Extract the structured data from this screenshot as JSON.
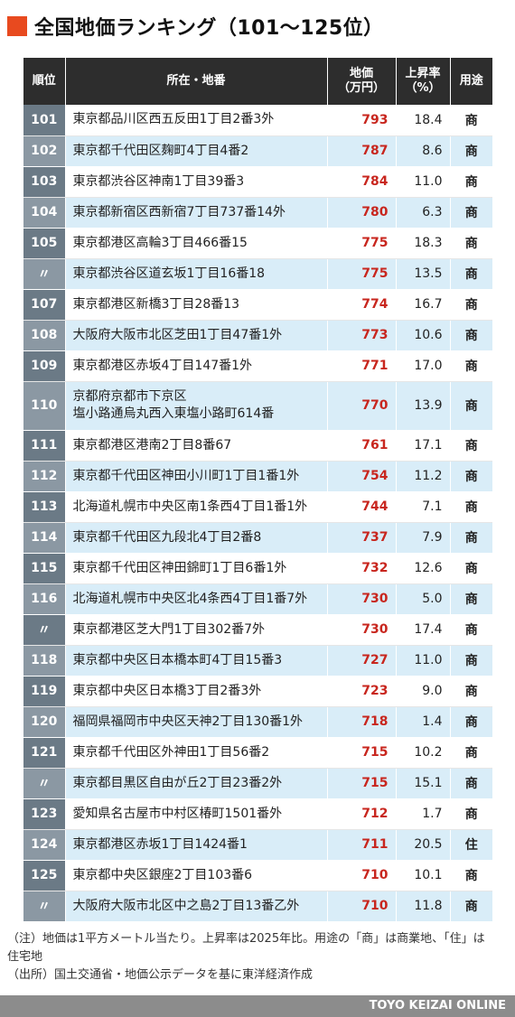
{
  "title": "全国地価ランキング（101〜125位）",
  "accent_color": "#e84a1f",
  "price_color": "#c8261e",
  "table": {
    "headers": {
      "rank": "順位",
      "address": "所在・地番",
      "price_line1": "地価",
      "price_line2": "（万円）",
      "rate_line1": "上昇率",
      "rate_line2": "（%）",
      "use": "用途"
    },
    "rows": [
      {
        "rank": "101",
        "address": "東京都品川区西五反田1丁目2番3外",
        "price": "793",
        "rate": "18.4",
        "use": "商"
      },
      {
        "rank": "102",
        "address": "東京都千代田区麹町4丁目4番2",
        "price": "787",
        "rate": "8.6",
        "use": "商"
      },
      {
        "rank": "103",
        "address": "東京都渋谷区神南1丁目39番3",
        "price": "784",
        "rate": "11.0",
        "use": "商"
      },
      {
        "rank": "104",
        "address": "東京都新宿区西新宿7丁目737番14外",
        "price": "780",
        "rate": "6.3",
        "use": "商"
      },
      {
        "rank": "105",
        "address": "東京都港区高輪3丁目466番15",
        "price": "775",
        "rate": "18.3",
        "use": "商"
      },
      {
        "rank": "〃",
        "address": "東京都渋谷区道玄坂1丁目16番18",
        "price": "775",
        "rate": "13.5",
        "use": "商"
      },
      {
        "rank": "107",
        "address": "東京都港区新橋3丁目28番13",
        "price": "774",
        "rate": "16.7",
        "use": "商"
      },
      {
        "rank": "108",
        "address": "大阪府大阪市北区芝田1丁目47番1外",
        "price": "773",
        "rate": "10.6",
        "use": "商"
      },
      {
        "rank": "109",
        "address": "東京都港区赤坂4丁目147番1外",
        "price": "771",
        "rate": "17.0",
        "use": "商"
      },
      {
        "rank": "110",
        "address": "京都府京都市下京区",
        "address2": "塩小路通烏丸西入東塩小路町614番",
        "price": "770",
        "rate": "13.9",
        "use": "商"
      },
      {
        "rank": "111",
        "address": "東京都港区港南2丁目8番67",
        "price": "761",
        "rate": "17.1",
        "use": "商"
      },
      {
        "rank": "112",
        "address": "東京都千代田区神田小川町1丁目1番1外",
        "price": "754",
        "rate": "11.2",
        "use": "商"
      },
      {
        "rank": "113",
        "address": "北海道札幌市中央区南1条西4丁目1番1外",
        "price": "744",
        "rate": "7.1",
        "use": "商"
      },
      {
        "rank": "114",
        "address": "東京都千代田区九段北4丁目2番8",
        "price": "737",
        "rate": "7.9",
        "use": "商"
      },
      {
        "rank": "115",
        "address": "東京都千代田区神田錦町1丁目6番1外",
        "price": "732",
        "rate": "12.6",
        "use": "商"
      },
      {
        "rank": "116",
        "address": "北海道札幌市中央区北4条西4丁目1番7外",
        "price": "730",
        "rate": "5.0",
        "use": "商"
      },
      {
        "rank": "〃",
        "address": "東京都港区芝大門1丁目302番7外",
        "price": "730",
        "rate": "17.4",
        "use": "商"
      },
      {
        "rank": "118",
        "address": "東京都中央区日本橋本町4丁目15番3",
        "price": "727",
        "rate": "11.0",
        "use": "商"
      },
      {
        "rank": "119",
        "address": "東京都中央区日本橋3丁目2番3外",
        "price": "723",
        "rate": "9.0",
        "use": "商"
      },
      {
        "rank": "120",
        "address": "福岡県福岡市中央区天神2丁目130番1外",
        "price": "718",
        "rate": "1.4",
        "use": "商"
      },
      {
        "rank": "121",
        "address": "東京都千代田区外神田1丁目56番2",
        "price": "715",
        "rate": "10.2",
        "use": "商"
      },
      {
        "rank": "〃",
        "address": "東京都目黒区自由が丘2丁目23番2外",
        "price": "715",
        "rate": "15.1",
        "use": "商"
      },
      {
        "rank": "123",
        "address": "愛知県名古屋市中村区椿町1501番外",
        "price": "712",
        "rate": "1.7",
        "use": "商"
      },
      {
        "rank": "124",
        "address": "東京都港区赤坂1丁目1424番1",
        "price": "711",
        "rate": "20.5",
        "use": "住"
      },
      {
        "rank": "125",
        "address": "東京都中央区銀座2丁目103番6",
        "price": "710",
        "rate": "10.1",
        "use": "商"
      },
      {
        "rank": "〃",
        "address": "大阪府大阪市北区中之島2丁目13番乙外",
        "price": "710",
        "rate": "11.8",
        "use": "商"
      }
    ]
  },
  "notes": {
    "note": "（注）地価は1平方メートル当たり。上昇率は2025年比。用途の「商」は商業地、「住」は住宅地",
    "source": "（出所）国土交通省・地価公示データを基に東洋経済作成"
  },
  "footer": "TOYO KEIZAI ONLINE"
}
